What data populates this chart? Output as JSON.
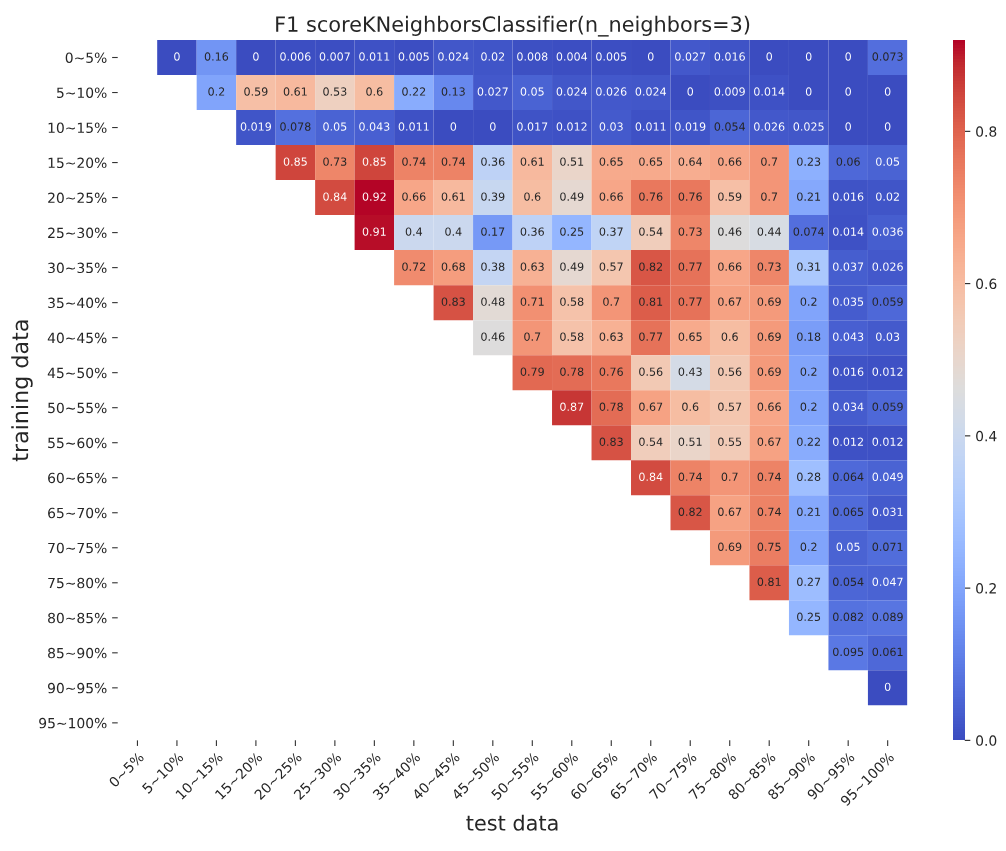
{
  "chart_data": {
    "type": "heatmap",
    "title": "F1 scoreKNeighborsClassifier(n_neighbors=3)",
    "xlabel": "test data",
    "ylabel": "training data",
    "categories": [
      "0~5%",
      "5~10%",
      "10~15%",
      "15~20%",
      "20~25%",
      "25~30%",
      "30~35%",
      "35~40%",
      "40~45%",
      "45~50%",
      "50~55%",
      "55~60%",
      "60~65%",
      "65~70%",
      "70~75%",
      "75~80%",
      "80~85%",
      "85~90%",
      "90~95%",
      "95~100%"
    ],
    "y_categories": [
      "0~5%",
      "5~10%",
      "10~15%",
      "15~20%",
      "20~25%",
      "25~30%",
      "30~35%",
      "35~40%",
      "40~45%",
      "45~50%",
      "50~55%",
      "55~60%",
      "60~65%",
      "65~70%",
      "70~75%",
      "75~80%",
      "80~85%",
      "85~90%",
      "90~95%",
      "95~100%"
    ],
    "cells": [
      [
        null,
        0,
        0.16,
        0,
        0.006,
        0.007,
        0.011,
        0.005,
        0.024,
        0.02,
        0.008,
        0.004,
        0.005,
        0,
        0.027,
        0.016,
        0,
        0,
        0,
        0.073
      ],
      [
        null,
        null,
        0.2,
        0.59,
        0.61,
        0.53,
        0.6,
        0.22,
        0.13,
        0.027,
        0.05,
        0.024,
        0.026,
        0.024,
        0,
        0.009,
        0.014,
        0,
        0,
        0
      ],
      [
        null,
        null,
        null,
        0.019,
        0.078,
        0.05,
        0.043,
        0.011,
        0,
        0,
        0.017,
        0.012,
        0.03,
        0.011,
        0.019,
        0.054,
        0.026,
        0.025,
        0,
        0
      ],
      [
        null,
        null,
        null,
        null,
        0.85,
        0.73,
        0.85,
        0.74,
        0.74,
        0.36,
        0.61,
        0.51,
        0.65,
        0.65,
        0.64,
        0.66,
        0.7,
        0.23,
        0.06,
        0.05
      ],
      [
        null,
        null,
        null,
        null,
        null,
        0.84,
        0.92,
        0.66,
        0.61,
        0.39,
        0.6,
        0.49,
        0.66,
        0.76,
        0.76,
        0.59,
        0.7,
        0.21,
        0.016,
        0.02
      ],
      [
        null,
        null,
        null,
        null,
        null,
        null,
        0.91,
        0.4,
        0.4,
        0.17,
        0.36,
        0.25,
        0.37,
        0.54,
        0.73,
        0.46,
        0.44,
        0.074,
        0.014,
        0.036
      ],
      [
        null,
        null,
        null,
        null,
        null,
        null,
        null,
        0.72,
        0.68,
        0.38,
        0.63,
        0.49,
        0.57,
        0.82,
        0.77,
        0.66,
        0.73,
        0.31,
        0.037,
        0.026
      ],
      [
        null,
        null,
        null,
        null,
        null,
        null,
        null,
        null,
        0.83,
        0.48,
        0.71,
        0.58,
        0.7,
        0.81,
        0.77,
        0.67,
        0.69,
        0.2,
        0.035,
        0.059
      ],
      [
        null,
        null,
        null,
        null,
        null,
        null,
        null,
        null,
        null,
        0.46,
        0.7,
        0.58,
        0.63,
        0.77,
        0.65,
        0.6,
        0.69,
        0.18,
        0.043,
        0.03
      ],
      [
        null,
        null,
        null,
        null,
        null,
        null,
        null,
        null,
        null,
        null,
        0.79,
        0.78,
        0.76,
        0.56,
        0.43,
        0.56,
        0.69,
        0.2,
        0.016,
        0.012
      ],
      [
        null,
        null,
        null,
        null,
        null,
        null,
        null,
        null,
        null,
        null,
        null,
        0.87,
        0.78,
        0.67,
        0.6,
        0.57,
        0.66,
        0.2,
        0.034,
        0.059
      ],
      [
        null,
        null,
        null,
        null,
        null,
        null,
        null,
        null,
        null,
        null,
        null,
        null,
        0.83,
        0.54,
        0.51,
        0.55,
        0.67,
        0.22,
        0.012,
        0.012
      ],
      [
        null,
        null,
        null,
        null,
        null,
        null,
        null,
        null,
        null,
        null,
        null,
        null,
        null,
        0.84,
        0.74,
        0.7,
        0.74,
        0.28,
        0.064,
        0.049
      ],
      [
        null,
        null,
        null,
        null,
        null,
        null,
        null,
        null,
        null,
        null,
        null,
        null,
        null,
        null,
        0.82,
        0.67,
        0.74,
        0.21,
        0.065,
        0.031
      ],
      [
        null,
        null,
        null,
        null,
        null,
        null,
        null,
        null,
        null,
        null,
        null,
        null,
        null,
        null,
        null,
        0.69,
        0.75,
        0.2,
        0.05,
        0.071
      ],
      [
        null,
        null,
        null,
        null,
        null,
        null,
        null,
        null,
        null,
        null,
        null,
        null,
        null,
        null,
        null,
        null,
        0.81,
        0.27,
        0.054,
        0.047
      ],
      [
        null,
        null,
        null,
        null,
        null,
        null,
        null,
        null,
        null,
        null,
        null,
        null,
        null,
        null,
        null,
        null,
        null,
        0.25,
        0.082,
        0.089
      ],
      [
        null,
        null,
        null,
        null,
        null,
        null,
        null,
        null,
        null,
        null,
        null,
        null,
        null,
        null,
        null,
        null,
        null,
        null,
        0.095,
        0.061
      ],
      [
        null,
        null,
        null,
        null,
        null,
        null,
        null,
        null,
        null,
        null,
        null,
        null,
        null,
        null,
        null,
        null,
        null,
        null,
        null,
        0
      ],
      [
        null,
        null,
        null,
        null,
        null,
        null,
        null,
        null,
        null,
        null,
        null,
        null,
        null,
        null,
        null,
        null,
        null,
        null,
        null,
        null
      ]
    ],
    "clim": [
      0,
      0.92
    ],
    "cticks": [
      {
        "value": 0,
        "label": "0.0"
      },
      0.2,
      0.4,
      0.6,
      0.8
    ],
    "data_labels": true
  }
}
